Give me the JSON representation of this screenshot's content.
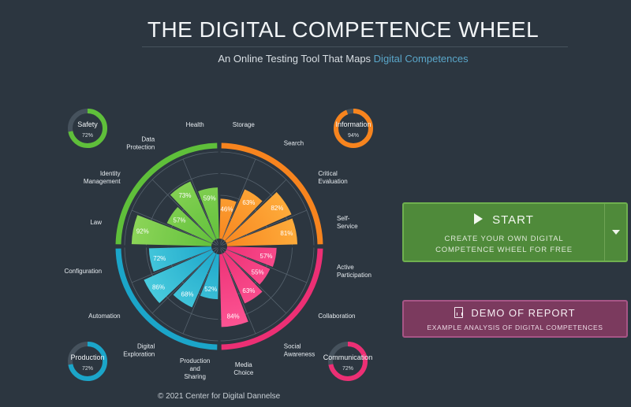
{
  "header": {
    "title": "THE DIGITAL COMPETENCE WHEEL",
    "subtitle_prefix": "An Online Testing Tool That Maps ",
    "subtitle_highlight": "Digital Competences"
  },
  "colors": {
    "background": "#2c3640",
    "grid": "#55616c",
    "text": "#e6ebef",
    "safety": "#7ac943",
    "information": "#f7931e",
    "communication": "#ec2f74",
    "production": "#1bb3c8"
  },
  "areas": [
    {
      "key": "safety",
      "name": "Safety",
      "score": "72%",
      "pct": 0.72,
      "color": "#5fbf3a",
      "light": "#8fd65a"
    },
    {
      "key": "information",
      "name": "Information",
      "score": "94%",
      "pct": 0.94,
      "color": "#f7841e",
      "light": "#ffb340"
    },
    {
      "key": "production",
      "name": "Production",
      "score": "72%",
      "pct": 0.72,
      "color": "#1ba5c9",
      "light": "#4fd0e0"
    },
    {
      "key": "communication",
      "name": "Communication",
      "score": "72%",
      "pct": 0.72,
      "color": "#ec2f74",
      "light": "#ff5a98"
    }
  ],
  "competences": [
    {
      "label": [
        "Storage"
      ],
      "area": "information",
      "value": 0.46,
      "score": "46%"
    },
    {
      "label": [
        "Search"
      ],
      "area": "information",
      "value": 0.63,
      "score": "63%"
    },
    {
      "label": [
        "Critical",
        "Evaluation"
      ],
      "area": "information",
      "value": 0.82,
      "score": "82%"
    },
    {
      "label": [
        "Self-",
        "Service"
      ],
      "area": "information",
      "value": 0.81,
      "score": "81%"
    },
    {
      "label": [
        "Active",
        "Participation"
      ],
      "area": "communication",
      "value": 0.57,
      "score": "57%"
    },
    {
      "label": [
        "Collaboration"
      ],
      "area": "communication",
      "value": 0.55,
      "score": "55%"
    },
    {
      "label": [
        "Social",
        "Awareness"
      ],
      "area": "communication",
      "value": 0.63,
      "score": "63%"
    },
    {
      "label": [
        "Media",
        "Choice"
      ],
      "area": "communication",
      "value": 0.84,
      "score": "84%"
    },
    {
      "label": [
        "Production",
        "and",
        "Sharing"
      ],
      "area": "production",
      "value": 0.52,
      "score": "52%"
    },
    {
      "label": [
        "Digital",
        "Exploration"
      ],
      "area": "production",
      "value": 0.68,
      "score": "68%"
    },
    {
      "label": [
        "Automation"
      ],
      "area": "production",
      "value": 0.86,
      "score": "86%"
    },
    {
      "label": [
        "Configuration"
      ],
      "area": "production",
      "value": 0.72,
      "score": "72%"
    },
    {
      "label": [
        "Law"
      ],
      "area": "safety",
      "value": 0.92,
      "score": "92%"
    },
    {
      "label": [
        "Identity",
        "Management"
      ],
      "area": "safety",
      "value": 0.57,
      "score": "57%"
    },
    {
      "label": [
        "Data",
        "Protection"
      ],
      "area": "safety",
      "value": 0.73,
      "score": "73%"
    },
    {
      "label": [
        "Health"
      ],
      "area": "safety",
      "value": 0.59,
      "score": "59%"
    }
  ],
  "start_button": {
    "label": "START",
    "sub_line1": "CREATE YOUR OWN DIGITAL",
    "sub_line2": "COMPETENCE WHEEL FOR FREE"
  },
  "demo_button": {
    "label": "DEMO OF REPORT",
    "sub": "EXAMPLE ANALYSIS OF DIGITAL COMPETENCES"
  },
  "footer": {
    "text": "© 2021 Center for Digital Dannelse"
  }
}
